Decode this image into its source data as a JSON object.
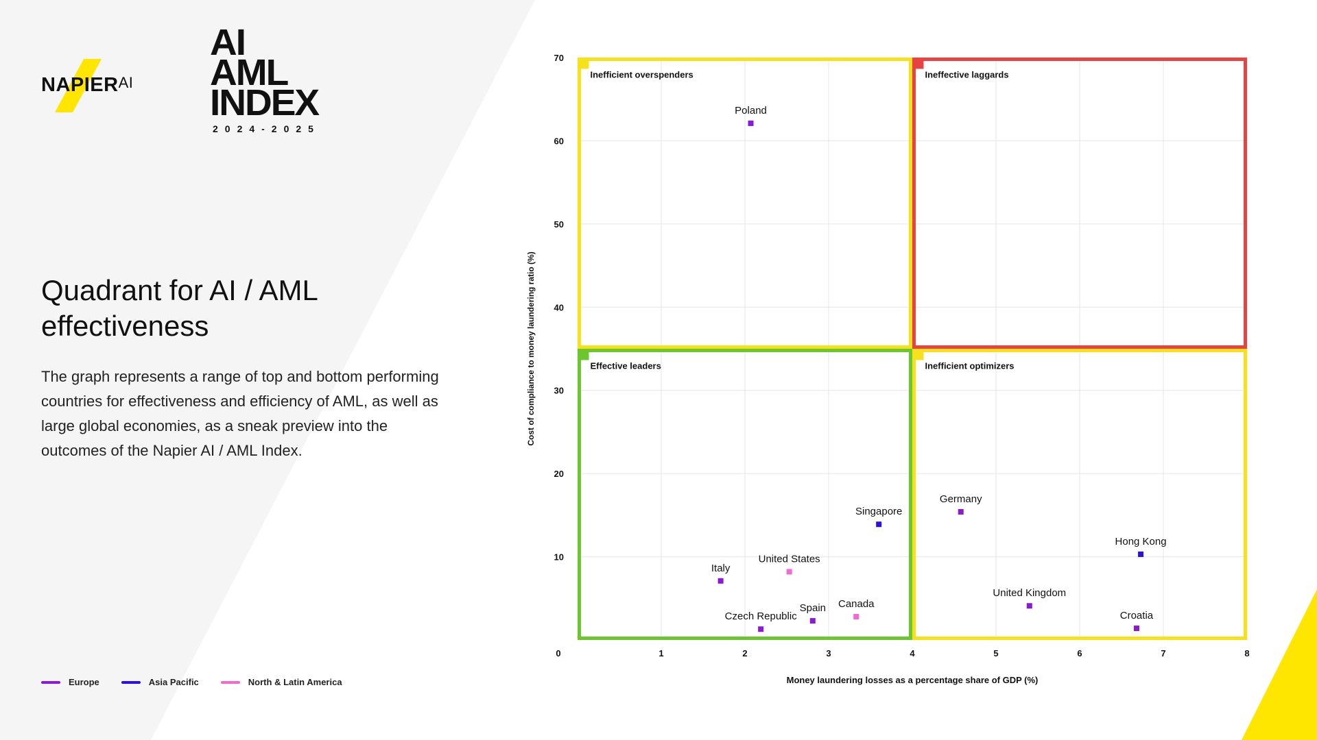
{
  "brand": {
    "napier_logo_text": "NAPIER",
    "napier_logo_suffix": "AI",
    "index_logo_lines": [
      "AI",
      "AML",
      "INDEX"
    ],
    "index_year": "2024-2025",
    "accent_color": "#FFE600"
  },
  "page": {
    "title": "Quadrant for AI / AML effectiveness",
    "description": "The graph represents a range of top and bottom performing countries for effectiveness and efficiency of AML, as well as large global economies, as a sneak preview into the outcomes of the Napier AI / AML Index."
  },
  "legend": [
    {
      "label": "Europe",
      "color": "#8A1AD6"
    },
    {
      "label": "Asia Pacific",
      "color": "#2A0FE8"
    },
    {
      "label": "North & Latin America",
      "color": "#F06AD0"
    }
  ],
  "chart_data": {
    "type": "scatter",
    "xlabel": "Money laundering losses as a percentage share of GDP (%)",
    "ylabel": "Cost of compliance to money laundering ratio (%)",
    "xlim": [
      0,
      8
    ],
    "ylim": [
      0,
      70
    ],
    "xticks": [
      1,
      2,
      3,
      4,
      5,
      6,
      7,
      8
    ],
    "yticks": [
      10,
      20,
      30,
      40,
      50,
      60,
      70
    ],
    "origin_label": "0",
    "grid": true,
    "quadrants": [
      {
        "label": "Inefficient overspenders",
        "x": [
          0,
          4
        ],
        "y": [
          35,
          70
        ],
        "color": "#F5E11C"
      },
      {
        "label": "Ineffective laggards",
        "x": [
          4,
          8
        ],
        "y": [
          35,
          70
        ],
        "color": "#E84343"
      },
      {
        "label": "Effective leaders",
        "x": [
          0,
          4
        ],
        "y": [
          0,
          35
        ],
        "color": "#6CC62E"
      },
      {
        "label": "Inefficient optimizers",
        "x": [
          4,
          8
        ],
        "y": [
          0,
          35
        ],
        "color": "#F5E11C"
      }
    ],
    "points": [
      {
        "label": "Poland",
        "x": 2.07,
        "y": 62.1,
        "region": "Europe",
        "color": "#8A1AD6"
      },
      {
        "label": "Singapore",
        "x": 3.6,
        "y": 13.9,
        "region": "Asia Pacific",
        "color": "#2A0FE8"
      },
      {
        "label": "Germany",
        "x": 4.58,
        "y": 15.4,
        "region": "Europe",
        "color": "#8A1AD6"
      },
      {
        "label": "Hong Kong",
        "x": 6.73,
        "y": 10.3,
        "region": "Asia Pacific",
        "color": "#2A0FE8"
      },
      {
        "label": "Italy",
        "x": 1.71,
        "y": 7.1,
        "region": "Europe",
        "color": "#8A1AD6"
      },
      {
        "label": "United States",
        "x": 2.53,
        "y": 8.2,
        "region": "North & Latin America",
        "color": "#F06AD0"
      },
      {
        "label": "United Kingdom",
        "x": 5.4,
        "y": 4.1,
        "region": "Europe",
        "color": "#8A1AD6"
      },
      {
        "label": "Canada",
        "x": 3.33,
        "y": 2.8,
        "region": "North & Latin America",
        "color": "#F06AD0"
      },
      {
        "label": "Spain",
        "x": 2.81,
        "y": 2.3,
        "region": "Europe",
        "color": "#8A1AD6"
      },
      {
        "label": "Czech Republic",
        "x": 2.19,
        "y": 1.3,
        "region": "Europe",
        "color": "#8A1AD6"
      },
      {
        "label": "Croatia",
        "x": 6.68,
        "y": 1.4,
        "region": "Europe",
        "color": "#8A1AD6"
      }
    ]
  }
}
